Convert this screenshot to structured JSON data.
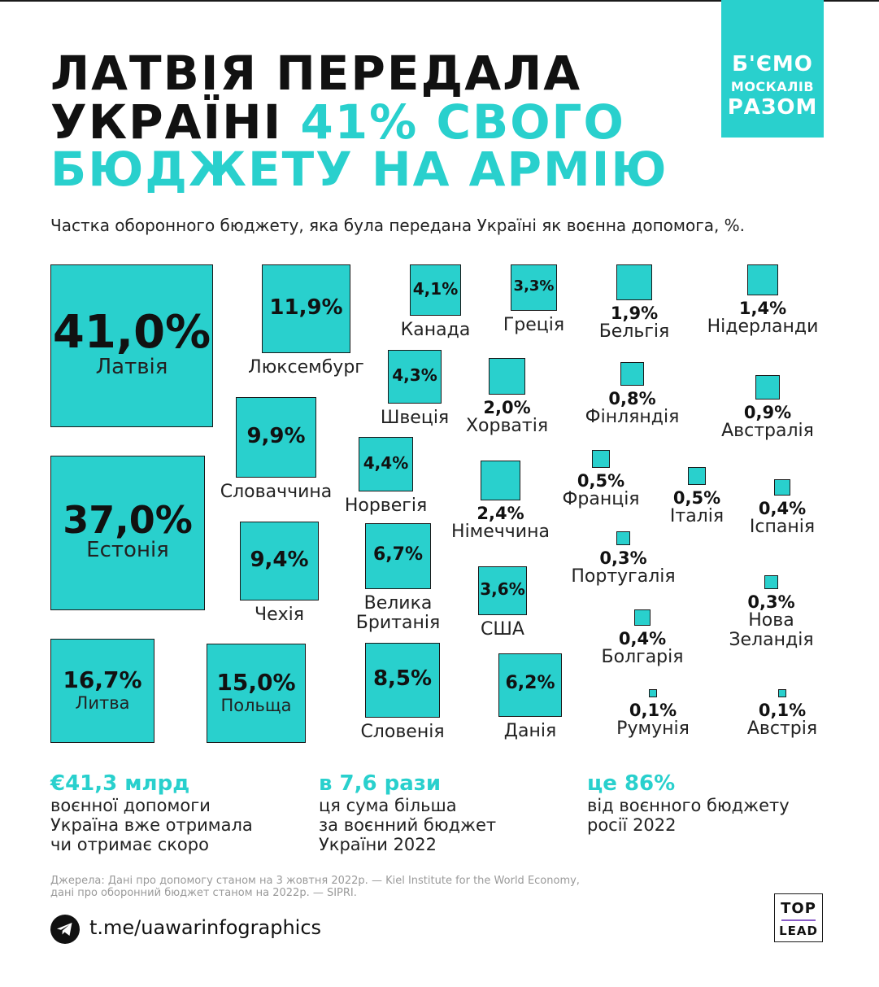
{
  "title": {
    "line1": "ЛАТВІЯ ПЕРЕДАЛА",
    "line2_dark": "УКРАЇНІ ",
    "line2_accent": "41% СВОГО",
    "line3": "БЮДЖЕТУ НА АРМІЮ"
  },
  "badge": {
    "line1": "Б'ЄМО",
    "line2": "МОСКАЛІВ",
    "line3": "РАЗОМ"
  },
  "colors": {
    "accent": "#29d0cd",
    "dark": "#111111",
    "border": "#1a1a1a"
  },
  "chart_data": {
    "type": "proportional-area",
    "title": "Частка оборонного бюджету, яка була передана Україні як воєнна допомога, %.",
    "unit": "%",
    "items": [
      {
        "country": "Латвія",
        "value": 41.0,
        "label": "41,0%"
      },
      {
        "country": "Естонія",
        "value": 37.0,
        "label": "37,0%"
      },
      {
        "country": "Литва",
        "value": 16.7,
        "label": "16,7%"
      },
      {
        "country": "Польща",
        "value": 15.0,
        "label": "15,0%"
      },
      {
        "country": "Люксембург",
        "value": 11.9,
        "label": "11,9%"
      },
      {
        "country": "Словаччина",
        "value": 9.9,
        "label": "9,9%"
      },
      {
        "country": "Чехія",
        "value": 9.4,
        "label": "9,4%"
      },
      {
        "country": "Словенія",
        "value": 8.5,
        "label": "8,5%"
      },
      {
        "country": "Велика\nБританія",
        "value": 6.7,
        "label": "6,7%"
      },
      {
        "country": "Данія",
        "value": 6.2,
        "label": "6,2%"
      },
      {
        "country": "Норвегія",
        "value": 4.4,
        "label": "4,4%"
      },
      {
        "country": "Швеція",
        "value": 4.3,
        "label": "4,3%"
      },
      {
        "country": "Канада",
        "value": 4.1,
        "label": "4,1%"
      },
      {
        "country": "США",
        "value": 3.6,
        "label": "3,6%"
      },
      {
        "country": "Греція",
        "value": 3.3,
        "label": "3,3%"
      },
      {
        "country": "Німеччина",
        "value": 2.4,
        "label": "2,4%"
      },
      {
        "country": "Хорватія",
        "value": 2.0,
        "label": "2,0%"
      },
      {
        "country": "Бельгія",
        "value": 1.9,
        "label": "1,9%"
      },
      {
        "country": "Нідерланди",
        "value": 1.4,
        "label": "1,4%"
      },
      {
        "country": "Австралія",
        "value": 0.9,
        "label": "0,9%"
      },
      {
        "country": "Фінляндія",
        "value": 0.8,
        "label": "0,8%"
      },
      {
        "country": "Франція",
        "value": 0.5,
        "label": "0,5%"
      },
      {
        "country": "Італія",
        "value": 0.5,
        "label": "0,5%"
      },
      {
        "country": "Іспанія",
        "value": 0.4,
        "label": "0,4%"
      },
      {
        "country": "Болгарія",
        "value": 0.4,
        "label": "0,4%"
      },
      {
        "country": "Португалія",
        "value": 0.3,
        "label": "0,3%"
      },
      {
        "country": "Нова\nЗеландія",
        "value": 0.3,
        "label": "0,3%"
      },
      {
        "country": "Румунія",
        "value": 0.1,
        "label": "0,1%"
      },
      {
        "country": "Австрія",
        "value": 0.1,
        "label": "0,1%"
      }
    ]
  },
  "stats": [
    {
      "headline": "€41,3 млрд",
      "text": "воєнної допомоги\nУкраїна вже отримала\nчи отримає скоро"
    },
    {
      "headline": "в 7,6 рази",
      "text": "ця сума більша\nза воєнний бюджет\nУкраїни 2022"
    },
    {
      "headline": "це 86%",
      "text": "від воєнного бюджету\nросії 2022"
    }
  ],
  "sources": "Джерела: Дані про допомогу станом на 3 жовтня 2022р. — Kiel Institute for the World Economy,\nдані про оборонний бюджет станом на 2022р. — SIPRI.",
  "footer": {
    "telegram_icon": "telegram-icon",
    "link": "t.me/uawarinfographics",
    "logo_top": "TOP",
    "logo_bottom": "LEAD"
  }
}
